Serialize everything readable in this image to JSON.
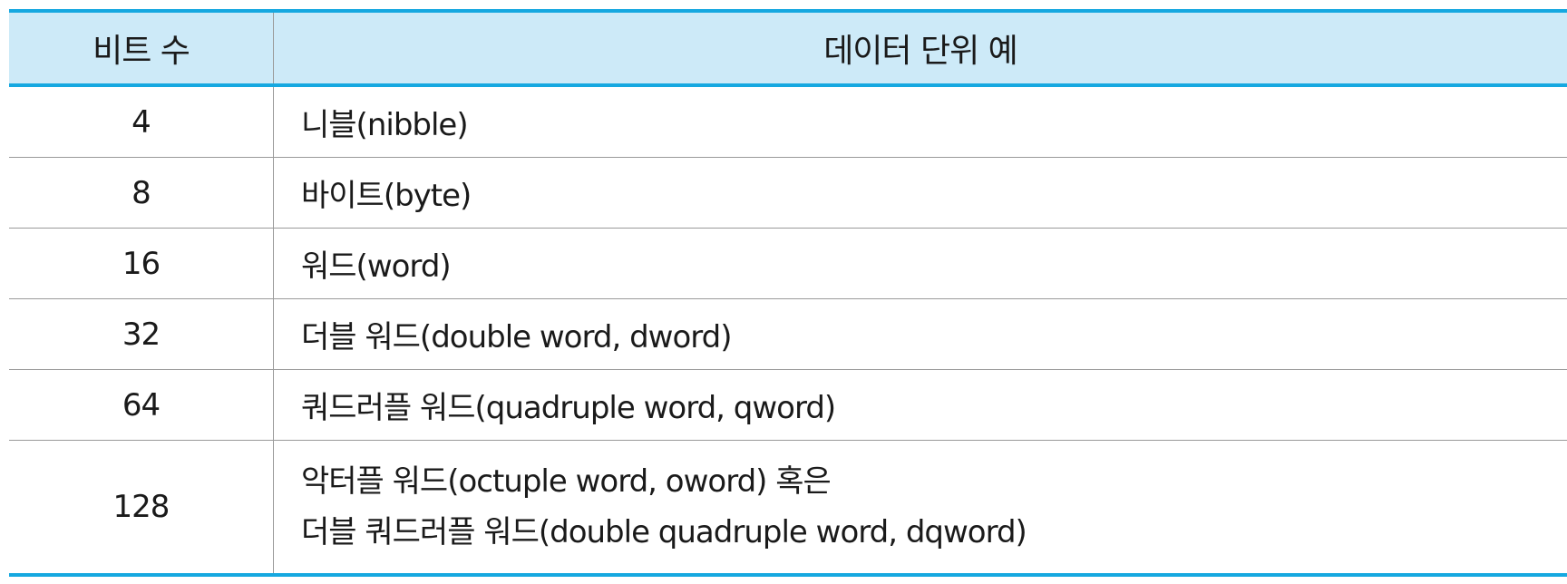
{
  "table": {
    "headers": {
      "bits": "비트 수",
      "unit": "데이터 단위 예"
    },
    "rows": [
      {
        "bits": "4",
        "unit": "니블(nibble)"
      },
      {
        "bits": "8",
        "unit": "바이트(byte)"
      },
      {
        "bits": "16",
        "unit": "워드(word)"
      },
      {
        "bits": "32",
        "unit": "더블 워드(double word, dword)"
      },
      {
        "bits": "64",
        "unit": "쿼드러플 워드(quadruple word, qword)"
      },
      {
        "bits": "128",
        "unit_line1": "악터플 워드(octuple word, oword) 혹은",
        "unit_line2": "더블 쿼드러플 워드(double quadruple word, dqword)"
      }
    ]
  },
  "colors": {
    "accent_border": "#16a8e0",
    "header_fill": "#cdeaf8",
    "grid": "#9a9a9a",
    "text": "#1a1a1a"
  }
}
